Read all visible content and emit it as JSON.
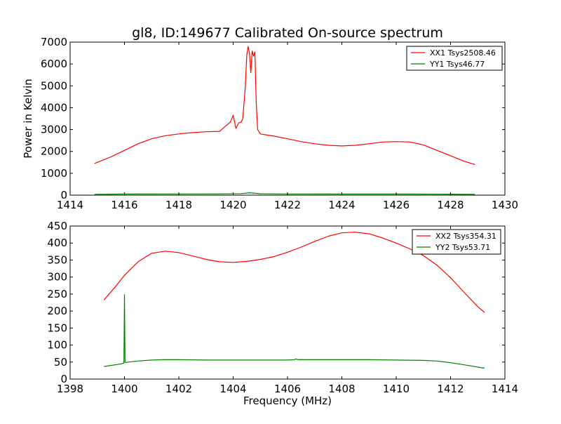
{
  "chart_data": [
    {
      "type": "line",
      "title": "gl8, ID:149677 Calibrated On-source spectrum",
      "xlabel": "",
      "ylabel": "Power in Kelvin",
      "xlim": [
        1414,
        1430
      ],
      "ylim": [
        0,
        7000
      ],
      "xticks": [
        1414,
        1416,
        1418,
        1420,
        1422,
        1424,
        1426,
        1428,
        1430
      ],
      "yticks": [
        0,
        1000,
        2000,
        3000,
        4000,
        5000,
        6000,
        7000
      ],
      "grid": false,
      "legend_position": "top-right",
      "series": [
        {
          "name": "XX1 Tsys2508.46",
          "color": "#ff0000",
          "x": [
            1414.9,
            1415.5,
            1416.0,
            1416.5,
            1417.0,
            1417.5,
            1418.0,
            1418.5,
            1419.0,
            1419.5,
            1419.9,
            1420.0,
            1420.1,
            1420.2,
            1420.3,
            1420.35,
            1420.4,
            1420.45,
            1420.5,
            1420.55,
            1420.6,
            1420.65,
            1420.7,
            1420.75,
            1420.8,
            1420.85,
            1420.9,
            1421.0,
            1421.5,
            1422.0,
            1422.5,
            1423.0,
            1423.5,
            1424.0,
            1424.5,
            1425.0,
            1425.5,
            1426.0,
            1426.5,
            1427.0,
            1427.5,
            1428.0,
            1428.5,
            1428.9
          ],
          "y": [
            1450,
            1750,
            2050,
            2350,
            2580,
            2720,
            2800,
            2860,
            2900,
            2920,
            3350,
            3650,
            3050,
            3300,
            3350,
            3500,
            4200,
            5000,
            6400,
            6800,
            6500,
            5600,
            6600,
            6350,
            6550,
            4200,
            3000,
            2800,
            2700,
            2580,
            2450,
            2350,
            2280,
            2250,
            2280,
            2350,
            2430,
            2450,
            2430,
            2300,
            2050,
            1800,
            1550,
            1400
          ]
        },
        {
          "name": "YY1 Tsys46.77",
          "color": "#008000",
          "x": [
            1414.9,
            1416.0,
            1418.0,
            1419.5,
            1420.3,
            1420.6,
            1421.0,
            1422.0,
            1424.0,
            1426.0,
            1428.0,
            1428.9
          ],
          "y": [
            40,
            50,
            55,
            58,
            70,
            110,
            65,
            55,
            50,
            50,
            45,
            40
          ]
        }
      ]
    },
    {
      "type": "line",
      "title": "",
      "xlabel": "Frequency (MHz)",
      "ylabel": "",
      "xlim": [
        1398,
        1414
      ],
      "ylim": [
        0,
        450
      ],
      "xticks": [
        1398,
        1400,
        1402,
        1404,
        1406,
        1408,
        1410,
        1412,
        1414
      ],
      "yticks": [
        0,
        50,
        100,
        150,
        200,
        250,
        300,
        350,
        400,
        450
      ],
      "grid": false,
      "legend_position": "top-right",
      "series": [
        {
          "name": "XX2 Tsys354.31",
          "color": "#ff0000",
          "x": [
            1399.25,
            1399.7,
            1400.0,
            1400.5,
            1401.0,
            1401.5,
            1402.0,
            1402.5,
            1403.0,
            1403.5,
            1404.0,
            1404.5,
            1405.0,
            1405.5,
            1406.0,
            1406.5,
            1407.0,
            1407.5,
            1408.0,
            1408.5,
            1409.0,
            1409.5,
            1410.0,
            1410.5,
            1411.0,
            1411.5,
            1412.0,
            1412.5,
            1413.0,
            1413.25
          ],
          "y": [
            233,
            275,
            305,
            345,
            370,
            376,
            372,
            362,
            352,
            345,
            343,
            346,
            352,
            360,
            373,
            388,
            405,
            420,
            430,
            432,
            427,
            415,
            400,
            383,
            363,
            335,
            298,
            255,
            213,
            196
          ]
        },
        {
          "name": "YY2 Tsys53.71",
          "color": "#008000",
          "x": [
            1399.25,
            1399.9,
            1399.98,
            1400.0,
            1400.02,
            1400.5,
            1401.0,
            1401.5,
            1402.0,
            1403.0,
            1404.0,
            1405.0,
            1406.0,
            1406.25,
            1406.3,
            1406.4,
            1407.0,
            1408.0,
            1409.0,
            1410.0,
            1411.0,
            1411.5,
            1412.0,
            1412.5,
            1413.25
          ],
          "y": [
            37,
            45,
            47,
            248,
            49,
            53,
            56,
            57,
            57,
            56,
            56,
            56,
            56,
            57,
            59,
            57,
            57,
            57,
            57,
            56,
            55,
            53,
            48,
            42,
            32
          ]
        }
      ]
    }
  ]
}
